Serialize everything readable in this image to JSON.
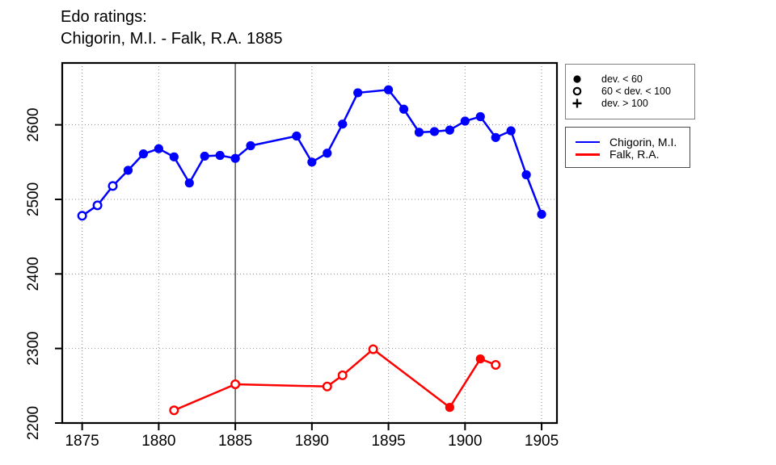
{
  "title": {
    "line1": "Edo ratings:",
    "line2": "Chigorin, M.I. - Falk, R.A. 1885"
  },
  "colors": {
    "chigorin": "#0000ff",
    "falk": "#ff0000",
    "grid": "#8c8c8c",
    "reference_line": "#3a3a3a",
    "axis": "#000000",
    "legend_border_markers": "#808080",
    "legend_border_series": "#4a4a4a"
  },
  "marker_legend": {
    "items": [
      {
        "symbol": "filled-circle",
        "label": "dev. < 60"
      },
      {
        "symbol": "open-circle",
        "label": "60 < dev. < 100"
      },
      {
        "symbol": "plus",
        "label": "dev. > 100"
      }
    ]
  },
  "series_legend": {
    "items": [
      {
        "label": "Chigorin, M.I.",
        "color": "#0000ff"
      },
      {
        "label": "Falk, R.A.",
        "color": "#ff0000"
      }
    ]
  },
  "chart_data": {
    "type": "line",
    "title": "Edo ratings: Chigorin, M.I. - Falk, R.A. 1885",
    "xlabel": "",
    "ylabel": "",
    "xlim": [
      1873.7,
      1906.0
    ],
    "ylim": [
      2200,
      2683
    ],
    "x_ticks": [
      1875,
      1880,
      1885,
      1890,
      1895,
      1900,
      1905
    ],
    "y_ticks": [
      2200,
      2300,
      2400,
      2500,
      2600
    ],
    "grid": "dotted",
    "legend_position": "right",
    "reference_line_x": 1885,
    "marker_meaning": {
      "filled": "dev. < 60",
      "open": "60 < dev. < 100",
      "plus": "dev. > 100"
    },
    "series": [
      {
        "name": "Chigorin, M.I.",
        "color": "#0000ff",
        "points": [
          {
            "year": 1875,
            "rating": 2478,
            "marker": "open"
          },
          {
            "year": 1876,
            "rating": 2492,
            "marker": "open"
          },
          {
            "year": 1877,
            "rating": 2518,
            "marker": "open"
          },
          {
            "year": 1878,
            "rating": 2539,
            "marker": "filled"
          },
          {
            "year": 1879,
            "rating": 2561,
            "marker": "filled"
          },
          {
            "year": 1880,
            "rating": 2568,
            "marker": "filled"
          },
          {
            "year": 1881,
            "rating": 2557,
            "marker": "filled"
          },
          {
            "year": 1882,
            "rating": 2522,
            "marker": "filled"
          },
          {
            "year": 1883,
            "rating": 2558,
            "marker": "filled"
          },
          {
            "year": 1884,
            "rating": 2559,
            "marker": "filled"
          },
          {
            "year": 1885,
            "rating": 2555,
            "marker": "filled"
          },
          {
            "year": 1886,
            "rating": 2572,
            "marker": "filled"
          },
          {
            "year": 1889,
            "rating": 2585,
            "marker": "filled"
          },
          {
            "year": 1890,
            "rating": 2550,
            "marker": "filled"
          },
          {
            "year": 1891,
            "rating": 2562,
            "marker": "filled"
          },
          {
            "year": 1892,
            "rating": 2601,
            "marker": "filled"
          },
          {
            "year": 1893,
            "rating": 2643,
            "marker": "filled"
          },
          {
            "year": 1895,
            "rating": 2647,
            "marker": "filled"
          },
          {
            "year": 1896,
            "rating": 2621,
            "marker": "filled"
          },
          {
            "year": 1897,
            "rating": 2590,
            "marker": "filled"
          },
          {
            "year": 1898,
            "rating": 2591,
            "marker": "filled"
          },
          {
            "year": 1899,
            "rating": 2593,
            "marker": "filled"
          },
          {
            "year": 1900,
            "rating": 2605,
            "marker": "filled"
          },
          {
            "year": 1901,
            "rating": 2611,
            "marker": "filled"
          },
          {
            "year": 1902,
            "rating": 2583,
            "marker": "filled"
          },
          {
            "year": 1903,
            "rating": 2592,
            "marker": "filled"
          },
          {
            "year": 1904,
            "rating": 2533,
            "marker": "filled"
          },
          {
            "year": 1905,
            "rating": 2480,
            "marker": "filled"
          }
        ]
      },
      {
        "name": "Falk, R.A.",
        "color": "#ff0000",
        "points": [
          {
            "year": 1881,
            "rating": 2217,
            "marker": "open"
          },
          {
            "year": 1885,
            "rating": 2252,
            "marker": "open"
          },
          {
            "year": 1891,
            "rating": 2249,
            "marker": "open"
          },
          {
            "year": 1892,
            "rating": 2264,
            "marker": "open"
          },
          {
            "year": 1894,
            "rating": 2299,
            "marker": "open"
          },
          {
            "year": 1899,
            "rating": 2221,
            "marker": "filled"
          },
          {
            "year": 1901,
            "rating": 2286,
            "marker": "filled"
          },
          {
            "year": 1902,
            "rating": 2278,
            "marker": "open"
          }
        ]
      }
    ]
  }
}
